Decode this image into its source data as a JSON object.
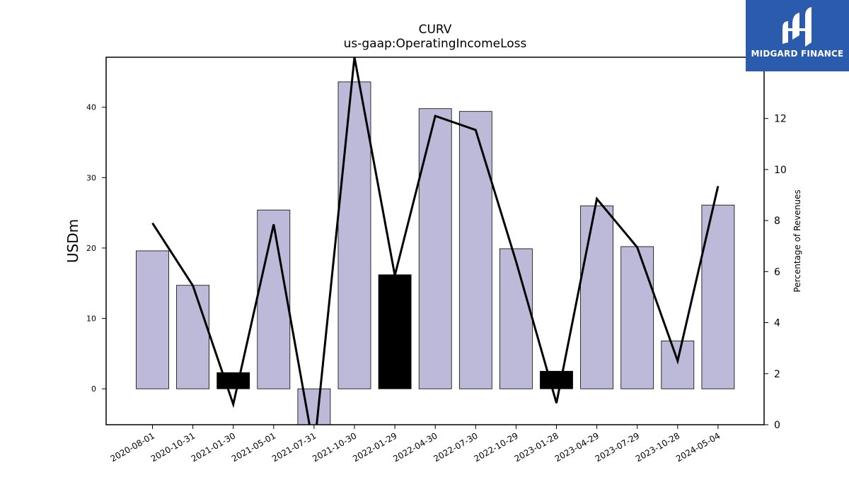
{
  "chart_data": {
    "type": "bar",
    "title": "CURV",
    "subtitle": "us-gaap:OperatingIncomeLoss",
    "ylabel": "USDm",
    "ylabel_right": "Percentage of Revenues",
    "categories": [
      "2020-08-01",
      "2020-10-31",
      "2021-01-30",
      "2021-05-01",
      "2021-07-31",
      "2021-10-30",
      "2022-01-29",
      "2022-04-30",
      "2022-07-30",
      "2022-10-29",
      "2023-01-28",
      "2023-04-29",
      "2023-07-29",
      "2023-10-28",
      "2024-05-04"
    ],
    "series": [
      {
        "type": "bar",
        "axis": "left",
        "values": [
          19.6,
          14.7,
          2.3,
          25.4,
          -5.2,
          43.6,
          16.2,
          39.8,
          39.4,
          19.9,
          2.5,
          26.0,
          20.2,
          6.8,
          26.1
        ],
        "colors": [
          "#bdbad9",
          "#bdbad9",
          "#000000",
          "#bdbad9",
          "#bdbad9",
          "#bdbad9",
          "#000000",
          "#bdbad9",
          "#bdbad9",
          "#bdbad9",
          "#000000",
          "#bdbad9",
          "#bdbad9",
          "#bdbad9",
          "#bdbad9"
        ]
      },
      {
        "type": "line",
        "axis": "right",
        "color": "#000000",
        "values": [
          7.9,
          5.45,
          0.8,
          7.85,
          -1.0,
          14.4,
          5.85,
          12.1,
          11.55,
          6.4,
          0.85,
          8.85,
          6.95,
          2.5,
          9.35
        ]
      }
    ],
    "ylim": [
      -5.1,
      47.1
    ],
    "yticks": [
      0,
      10,
      20,
      30,
      40
    ],
    "ylim_right": [
      0,
      14.4
    ],
    "yticks_right": [
      0,
      2,
      4,
      6,
      8,
      10,
      12
    ],
    "grid": false,
    "legend": "none"
  },
  "logo": {
    "text": "MIDGARD FINANCE",
    "background": "#2b5bad"
  }
}
